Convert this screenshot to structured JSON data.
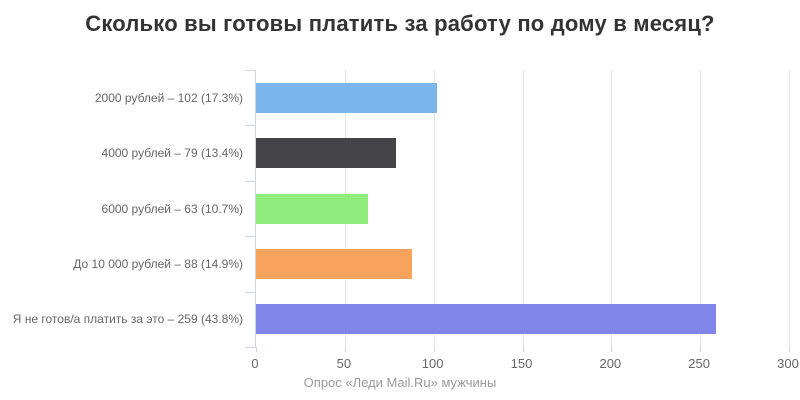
{
  "chart_data": {
    "type": "bar",
    "orientation": "horizontal",
    "title": "Сколько вы готовы платить за работу по дому в месяц?",
    "footnote": "Опрос «Леди Mail.Ru» мужчины",
    "categories": [
      "2000 рублей",
      "4000 рублей",
      "6000 рублей",
      "До 10 000 рублей",
      "Я не готов/а платить за это"
    ],
    "category_labels": [
      "2000 рублей – 102 (17.3%)",
      "4000 рублей – 79 (13.4%)",
      "6000 рублей – 63 (10.7%)",
      "До 10 000 рублей – 88 (14.9%)",
      "Я не готов/а платить за это – 259 (43.8%)"
    ],
    "values": [
      102,
      79,
      63,
      88,
      259
    ],
    "percentages": [
      17.3,
      13.4,
      10.7,
      14.9,
      43.8
    ],
    "bar_colors": [
      "#7cb5ec",
      "#434348",
      "#90ed7d",
      "#f7a35c",
      "#8085e9"
    ],
    "xlabel": "",
    "ylabel": "",
    "xlim": [
      0,
      300
    ],
    "xticks": [
      0,
      50,
      100,
      150,
      200,
      250,
      300
    ],
    "grid": true,
    "legend": false
  },
  "styles": {
    "axis_line_color": "#ccd6eb",
    "grid_color": "#e6e6e6",
    "title_color": "#333333",
    "axis_label_color": "#666666",
    "footnote_color": "#999999",
    "background": "#ffffff"
  }
}
